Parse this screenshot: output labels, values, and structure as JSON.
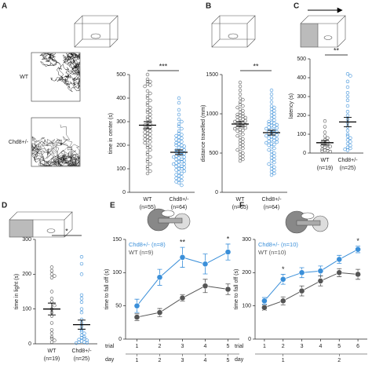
{
  "chart_data": [
    {
      "type": "strip",
      "panel": "A",
      "ylabel": "time in center (s)",
      "ylim": [
        0,
        500
      ],
      "yticks": [
        0,
        100,
        200,
        300,
        400,
        500
      ],
      "sig": "***",
      "image_labels": [
        "WT",
        "Chd8+/-"
      ],
      "groups": [
        {
          "label": "WT",
          "n": "(n=55)",
          "color": "#555555",
          "mean": 285,
          "sem": 15,
          "values": [
            470,
            460,
            455,
            500,
            480,
            470,
            450,
            430,
            420,
            410,
            400,
            390,
            380,
            370,
            360,
            350,
            345,
            340,
            330,
            320,
            315,
            310,
            300,
            295,
            290,
            285,
            280,
            275,
            270,
            265,
            260,
            255,
            250,
            245,
            240,
            235,
            230,
            225,
            220,
            215,
            210,
            200,
            195,
            190,
            180,
            170,
            160,
            150,
            140,
            130,
            120,
            110,
            100,
            90,
            80
          ]
        },
        {
          "label": "Chd8+/-",
          "n": "(n=64)",
          "color": "#3a8fd9",
          "mean": 170,
          "sem": 10,
          "values": [
            400,
            380,
            350,
            330,
            310,
            300,
            290,
            280,
            270,
            260,
            250,
            245,
            240,
            235,
            230,
            225,
            220,
            215,
            210,
            205,
            200,
            200,
            195,
            190,
            185,
            180,
            180,
            175,
            170,
            170,
            165,
            160,
            160,
            155,
            150,
            150,
            145,
            140,
            140,
            135,
            130,
            130,
            125,
            120,
            120,
            115,
            110,
            110,
            105,
            100,
            100,
            95,
            90,
            85,
            80,
            75,
            70,
            65,
            60,
            55,
            50,
            45,
            40,
            30
          ]
        }
      ]
    },
    {
      "type": "strip",
      "panel": "B",
      "ylabel": "distance travelled (mm)",
      "ylim": [
        0,
        1500
      ],
      "yticks": [
        0,
        500,
        1000,
        1500
      ],
      "sig": "**",
      "groups": [
        {
          "label": "WT",
          "n": "(n=55)",
          "color": "#555555",
          "mean": 870,
          "sem": 30,
          "values": [
            1400,
            1350,
            1300,
            1250,
            1200,
            1180,
            1150,
            1120,
            1100,
            1080,
            1060,
            1040,
            1020,
            1000,
            990,
            980,
            970,
            960,
            950,
            940,
            930,
            920,
            910,
            900,
            890,
            880,
            870,
            860,
            850,
            840,
            830,
            820,
            810,
            800,
            790,
            780,
            760,
            740,
            720,
            700,
            680,
            660,
            640,
            620,
            600,
            580,
            560,
            540,
            520,
            500,
            480,
            460,
            440,
            420,
            400
          ]
        },
        {
          "label": "Chd8+/-",
          "n": "(n=64)",
          "color": "#3a8fd9",
          "mean": 760,
          "sem": 30,
          "values": [
            1300,
            1250,
            1200,
            1150,
            1100,
            1080,
            1060,
            1040,
            1020,
            1000,
            980,
            960,
            940,
            920,
            900,
            890,
            880,
            870,
            860,
            850,
            840,
            830,
            820,
            810,
            800,
            790,
            780,
            770,
            760,
            750,
            740,
            730,
            720,
            710,
            700,
            690,
            680,
            670,
            660,
            650,
            640,
            630,
            620,
            610,
            600,
            580,
            560,
            540,
            520,
            500,
            480,
            460,
            440,
            420,
            400,
            380,
            360,
            340,
            320,
            300,
            280,
            260,
            240,
            220
          ]
        }
      ]
    },
    {
      "type": "strip",
      "panel": "C",
      "ylabel": "latency (s)",
      "ylim": [
        0,
        500
      ],
      "yticks": [
        0,
        100,
        200,
        300,
        400,
        500
      ],
      "sig": "**",
      "groups": [
        {
          "label": "WT",
          "n": "(n=19)",
          "color": "#555555",
          "mean": 55,
          "sem": 12,
          "values": [
            170,
            140,
            110,
            90,
            80,
            70,
            60,
            55,
            50,
            45,
            40,
            35,
            30,
            25,
            20,
            15,
            12,
            10,
            8
          ]
        },
        {
          "label": "Chd8+/-",
          "n": "(n=25)",
          "color": "#3a8fd9",
          "mean": 165,
          "sem": 25,
          "values": [
            420,
            410,
            380,
            350,
            320,
            300,
            280,
            250,
            220,
            200,
            180,
            160,
            140,
            120,
            100,
            90,
            80,
            70,
            60,
            50,
            40,
            30,
            25,
            20,
            15
          ]
        }
      ]
    },
    {
      "type": "strip",
      "panel": "D",
      "ylabel": "time in light (s)",
      "ylim": [
        0,
        300
      ],
      "yticks": [
        0,
        100,
        200,
        300
      ],
      "sig": "*",
      "groups": [
        {
          "label": "WT",
          "n": "(n=19)",
          "color": "#555555",
          "mean": 100,
          "sem": 17,
          "values": [
            220,
            210,
            200,
            195,
            190,
            150,
            130,
            120,
            110,
            100,
            90,
            80,
            60,
            40,
            30,
            20,
            15,
            10,
            5
          ]
        },
        {
          "label": "Chd8+/-",
          "n": "(n=25)",
          "color": "#3a8fd9",
          "mean": 55,
          "sem": 13,
          "values": [
            250,
            230,
            200,
            140,
            130,
            120,
            100,
            90,
            70,
            60,
            50,
            40,
            35,
            30,
            25,
            20,
            18,
            15,
            12,
            10,
            8,
            5,
            5,
            3,
            2
          ]
        }
      ]
    },
    {
      "type": "line",
      "panel": "E",
      "ylabel": "time to fall off (s)",
      "xlabel": "trial",
      "day_label": "day",
      "x": [
        1,
        2,
        3,
        4,
        5
      ],
      "xlim": [
        0.5,
        5.5
      ],
      "xticks": [
        1,
        2,
        3,
        4,
        5
      ],
      "day_ticks": [
        1,
        2,
        3,
        4,
        5
      ],
      "ylim": [
        0,
        150
      ],
      "yticks": [
        0,
        50,
        100,
        150
      ],
      "legend": "upper left",
      "series": [
        {
          "name": "Chd8+/- (n=8)",
          "color": "#3a8fd9",
          "values": [
            50,
            93,
            123,
            113,
            131
          ],
          "errors": [
            10,
            12,
            15,
            15,
            12
          ]
        },
        {
          "name": "WT (n=9)",
          "color": "#555555",
          "values": [
            33,
            40,
            62,
            80,
            75
          ],
          "errors": [
            5,
            6,
            5,
            10,
            8
          ]
        }
      ],
      "annotations": [
        {
          "x": 3,
          "text": "**"
        },
        {
          "x": 5,
          "text": "*"
        }
      ]
    },
    {
      "type": "line",
      "panel": "F",
      "ylabel": "time to fall off (s)",
      "xlabel": "trial",
      "day_label": "day",
      "x": [
        1,
        2,
        3,
        4,
        5,
        6
      ],
      "xlim": [
        0.5,
        6.5
      ],
      "xticks": [
        1,
        2,
        3,
        4,
        5,
        6
      ],
      "day_ticks": [
        {
          "value": 2,
          "label": "1"
        },
        {
          "value": 5,
          "label": "2"
        }
      ],
      "ylim": [
        0,
        300
      ],
      "yticks": [
        0,
        100,
        200,
        300
      ],
      "legend": "upper left",
      "series": [
        {
          "name": "Chd8+/- (n=10)",
          "color": "#3a8fd9",
          "values": [
            115,
            180,
            200,
            205,
            240,
            270
          ],
          "errors": [
            10,
            15,
            15,
            15,
            12,
            10
          ]
        },
        {
          "name": "WT (n=10)",
          "color": "#555555",
          "values": [
            95,
            115,
            145,
            175,
            200,
            195
          ],
          "errors": [
            8,
            12,
            15,
            15,
            12,
            15
          ]
        }
      ],
      "annotations": [
        {
          "x": 2,
          "text": "*"
        },
        {
          "x": 6,
          "text": "*"
        }
      ]
    }
  ]
}
